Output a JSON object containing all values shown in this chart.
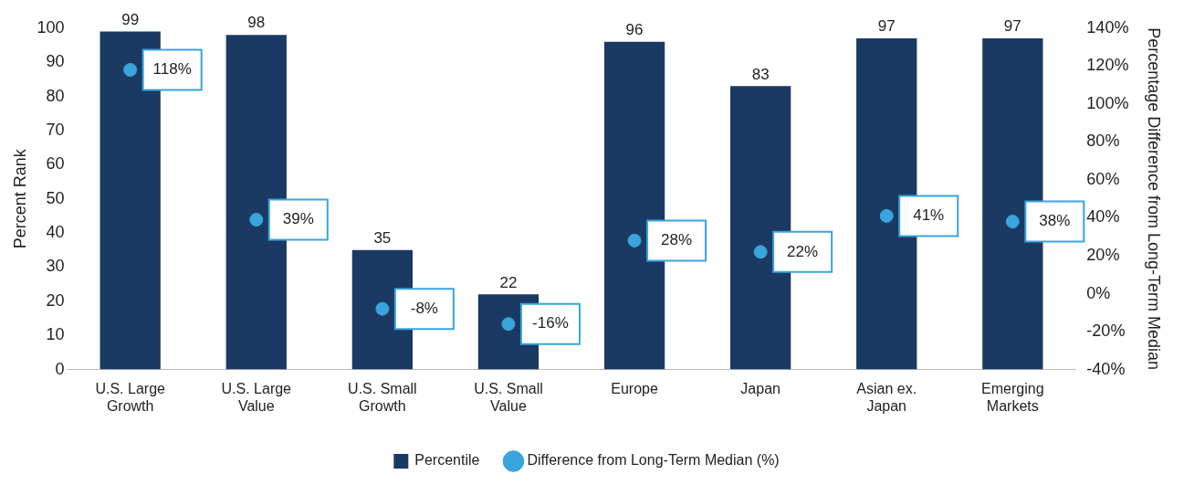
{
  "chart_data": {
    "type": "bar",
    "categories": [
      "U.S. Large Growth",
      "U.S. Large Value",
      "U.S. Small Growth",
      "U.S. Small Value",
      "Europe",
      "Japan",
      "Asian ex. Japan",
      "Emerging Markets"
    ],
    "series": [
      {
        "name": "Percentile",
        "color": "#1b3a63",
        "values": [
          99,
          98,
          35,
          22,
          96,
          83,
          97,
          97
        ],
        "value_labels": [
          "99",
          "98",
          "35",
          "22",
          "96",
          "83",
          "97",
          "97"
        ]
      },
      {
        "name": "Difference from Long-Term Median (%)",
        "type": "scatter",
        "axis": "y2",
        "color": "#3aa4dc",
        "x": [
          "U.S. Large Growth",
          "U.S. Large Value",
          "U.S. Small Growth",
          "U.S. Small Value",
          "Europe",
          "Japan",
          "Asian ex. Japan",
          "Emerging Markets"
        ],
        "values": [
          118,
          39,
          -8,
          -16,
          28,
          22,
          41,
          38
        ],
        "value_labels": [
          "118%",
          "39%",
          "-8%",
          "-16%",
          "28%",
          "22%",
          "41%",
          "38%"
        ]
      }
    ],
    "ylabel": "Percent Rank",
    "y2label": "Percentage Difference from Long-Term Median",
    "ylim": [
      0,
      100
    ],
    "yticks": [
      0,
      10,
      20,
      30,
      40,
      50,
      60,
      70,
      80,
      90,
      100
    ],
    "y2lim": [
      -40,
      140
    ],
    "y2ticks": [
      {
        "value": -40,
        "label": "-40%"
      },
      {
        "value": -20,
        "label": "-20%"
      },
      {
        "value": 0,
        "label": "0%"
      },
      {
        "value": 20,
        "label": "20%"
      },
      {
        "value": 40,
        "label": "40%"
      },
      {
        "value": 60,
        "label": "60%"
      },
      {
        "value": 80,
        "label": "80%"
      },
      {
        "value": 100,
        "label": "100%"
      },
      {
        "value": 120,
        "label": "120%"
      },
      {
        "value": 140,
        "label": "140%"
      }
    ],
    "grid": false,
    "legend": "bottom",
    "marker": "circle"
  }
}
